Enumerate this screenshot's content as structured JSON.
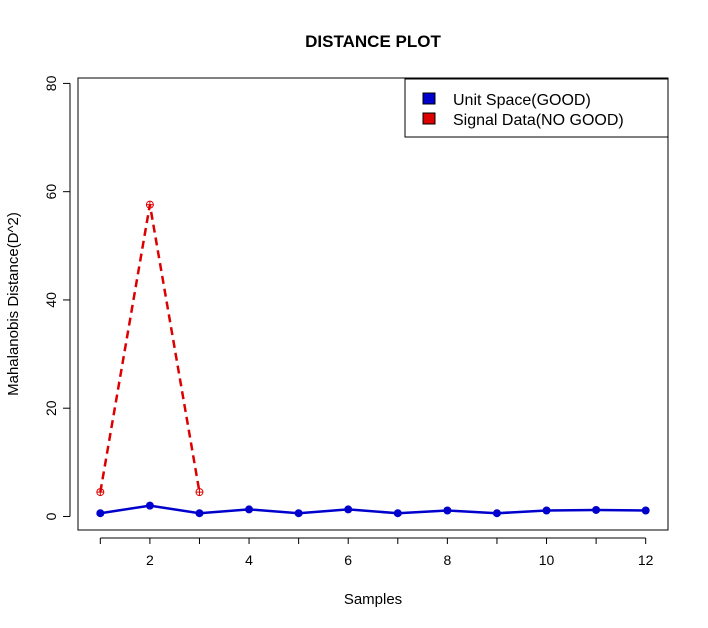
{
  "chart_data": {
    "type": "line",
    "title": "DISTANCE PLOT",
    "xlabel": "Samples",
    "ylabel": "Mahalanobis Distance(D^2)",
    "xlim": [
      0.55,
      12.45
    ],
    "ylim": [
      -2.5,
      81
    ],
    "xticks": [
      2,
      4,
      6,
      8,
      10,
      12
    ],
    "yticks": [
      0,
      20,
      40,
      60,
      80
    ],
    "grid": false,
    "legend_position": "top-right",
    "series": [
      {
        "name": "Unit Space(GOOD)",
        "color": "#0000cc",
        "line_style": "solid",
        "marker": "filled-circle",
        "x": [
          1,
          2,
          3,
          4,
          5,
          6,
          7,
          8,
          9,
          10,
          11,
          12
        ],
        "y": [
          0.6,
          2.0,
          0.6,
          1.3,
          0.6,
          1.3,
          0.6,
          1.1,
          0.6,
          1.1,
          1.2,
          1.1
        ]
      },
      {
        "name": "Signal Data(NO GOOD)",
        "color": "#dd0000",
        "line_style": "dashed",
        "marker": "circle-plus",
        "x": [
          1,
          2,
          3
        ],
        "y": [
          4.5,
          57.6,
          4.5
        ]
      }
    ]
  }
}
